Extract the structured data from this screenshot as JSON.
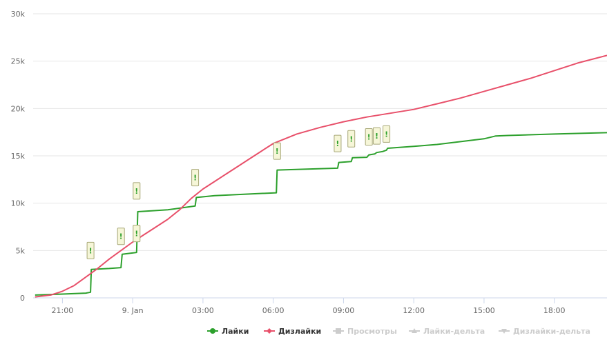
{
  "chart_data": {
    "type": "line",
    "title": "",
    "xlabel": "",
    "ylabel": "",
    "x_range": [
      "2024-01-08 19:45",
      "2024-01-09 20:15"
    ],
    "ylim": [
      0,
      30000
    ],
    "y_ticks": [
      0,
      5000,
      10000,
      15000,
      20000,
      25000,
      30000
    ],
    "y_tick_labels": [
      "0",
      "5k",
      "10k",
      "15k",
      "20k",
      "25k",
      "30k"
    ],
    "x_ticks": [
      "2024-01-08 21:00",
      "2024-01-09 00:00",
      "2024-01-09 03:00",
      "2024-01-09 06:00",
      "2024-01-09 09:00",
      "2024-01-09 12:00",
      "2024-01-09 15:00",
      "2024-01-09 18:00"
    ],
    "x_tick_labels": [
      "21:00",
      "9. Jan",
      "03:00",
      "06:00",
      "09:00",
      "12:00",
      "15:00",
      "18:00"
    ],
    "grid": "horizontal",
    "legend_position": "bottom-right",
    "series": [
      {
        "name": "Лайки",
        "color": "#2ca02c",
        "visible": true,
        "marker": "circle",
        "points": [
          [
            "2024-01-08 19:50",
            300
          ],
          [
            "2024-01-08 21:00",
            400
          ],
          [
            "2024-01-08 22:00",
            500
          ],
          [
            "2024-01-08 22:12",
            600
          ],
          [
            "2024-01-08 22:14",
            3000
          ],
          [
            "2024-01-08 23:00",
            3100
          ],
          [
            "2024-01-08 23:30",
            3200
          ],
          [
            "2024-01-08 23:33",
            4600
          ],
          [
            "2024-01-09 00:10",
            4800
          ],
          [
            "2024-01-09 00:13",
            9100
          ],
          [
            "2024-01-09 01:30",
            9300
          ],
          [
            "2024-01-09 02:40",
            9700
          ],
          [
            "2024-01-09 02:43",
            10600
          ],
          [
            "2024-01-09 03:30",
            10800
          ],
          [
            "2024-01-09 06:08",
            11100
          ],
          [
            "2024-01-09 06:10",
            13500
          ],
          [
            "2024-01-09 08:45",
            13700
          ],
          [
            "2024-01-09 08:48",
            14300
          ],
          [
            "2024-01-09 09:20",
            14400
          ],
          [
            "2024-01-09 09:23",
            14800
          ],
          [
            "2024-01-09 10:00",
            14850
          ],
          [
            "2024-01-09 10:05",
            15100
          ],
          [
            "2024-01-09 10:20",
            15200
          ],
          [
            "2024-01-09 10:25",
            15350
          ],
          [
            "2024-01-09 10:40",
            15450
          ],
          [
            "2024-01-09 10:50",
            15600
          ],
          [
            "2024-01-09 10:53",
            15800
          ],
          [
            "2024-01-09 12:00",
            16000
          ],
          [
            "2024-01-09 13:00",
            16200
          ],
          [
            "2024-01-09 14:00",
            16500
          ],
          [
            "2024-01-09 15:00",
            16800
          ],
          [
            "2024-01-09 15:30",
            17100
          ],
          [
            "2024-01-09 16:00",
            17150
          ],
          [
            "2024-01-09 18:00",
            17300
          ],
          [
            "2024-01-09 20:15",
            17450
          ]
        ]
      },
      {
        "name": "Дизлайки",
        "color": "#e8506a",
        "visible": true,
        "marker": "diamond",
        "points": [
          [
            "2024-01-08 19:50",
            100
          ],
          [
            "2024-01-08 20:30",
            300
          ],
          [
            "2024-01-08 21:00",
            700
          ],
          [
            "2024-01-08 21:30",
            1300
          ],
          [
            "2024-01-08 22:00",
            2200
          ],
          [
            "2024-01-08 22:30",
            3100
          ],
          [
            "2024-01-08 23:00",
            4100
          ],
          [
            "2024-01-08 23:30",
            5000
          ],
          [
            "2024-01-09 00:00",
            5900
          ],
          [
            "2024-01-09 00:30",
            6700
          ],
          [
            "2024-01-09 01:00",
            7500
          ],
          [
            "2024-01-09 01:30",
            8300
          ],
          [
            "2024-01-09 02:00",
            9300
          ],
          [
            "2024-01-09 02:30",
            10500
          ],
          [
            "2024-01-09 03:00",
            11500
          ],
          [
            "2024-01-09 03:30",
            12300
          ],
          [
            "2024-01-09 04:00",
            13100
          ],
          [
            "2024-01-09 04:30",
            13900
          ],
          [
            "2024-01-09 05:00",
            14700
          ],
          [
            "2024-01-09 05:30",
            15500
          ],
          [
            "2024-01-09 06:00",
            16300
          ],
          [
            "2024-01-09 06:30",
            16800
          ],
          [
            "2024-01-09 07:00",
            17300
          ],
          [
            "2024-01-09 08:00",
            18000
          ],
          [
            "2024-01-09 09:00",
            18600
          ],
          [
            "2024-01-09 10:00",
            19100
          ],
          [
            "2024-01-09 11:00",
            19500
          ],
          [
            "2024-01-09 12:00",
            19900
          ],
          [
            "2024-01-09 13:00",
            20500
          ],
          [
            "2024-01-09 14:00",
            21100
          ],
          [
            "2024-01-09 15:00",
            21800
          ],
          [
            "2024-01-09 16:00",
            22500
          ],
          [
            "2024-01-09 17:00",
            23200
          ],
          [
            "2024-01-09 18:00",
            24000
          ],
          [
            "2024-01-09 19:00",
            24800
          ],
          [
            "2024-01-09 20:15",
            25600
          ]
        ]
      },
      {
        "name": "Просмотры",
        "color": "#cccccc",
        "visible": false,
        "marker": "square",
        "points": []
      },
      {
        "name": "Лайки-дельта",
        "color": "#cccccc",
        "visible": false,
        "marker": "triangle",
        "points": []
      },
      {
        "name": "Дизлайки-дельта",
        "color": "#cccccc",
        "visible": false,
        "marker": "triangle-down",
        "points": []
      }
    ],
    "flags": [
      {
        "time": "2024-01-08 22:12",
        "y": 5000,
        "text": "!"
      },
      {
        "time": "2024-01-08 23:30",
        "y": 6500,
        "text": "!"
      },
      {
        "time": "2024-01-09 00:10",
        "y": 6800,
        "text": "!"
      },
      {
        "time": "2024-01-09 00:10",
        "y": 11300,
        "text": "!"
      },
      {
        "time": "2024-01-09 02:40",
        "y": 12700,
        "text": "!"
      },
      {
        "time": "2024-01-09 06:10",
        "y": 15500,
        "text": "!"
      },
      {
        "time": "2024-01-09 08:45",
        "y": 16300,
        "text": "!"
      },
      {
        "time": "2024-01-09 09:20",
        "y": 16800,
        "text": "!"
      },
      {
        "time": "2024-01-09 10:05",
        "y": 17000,
        "text": "!"
      },
      {
        "time": "2024-01-09 10:25",
        "y": 17100,
        "text": "!"
      },
      {
        "time": "2024-01-09 10:50",
        "y": 17300,
        "text": "!"
      }
    ],
    "flag_color": "#2ca02c",
    "flag_fill": "#f6f6d8",
    "flag_border": "#a8a878",
    "grid_color": "#e6e6e6",
    "hidden_legend_color": "#cccccc"
  }
}
